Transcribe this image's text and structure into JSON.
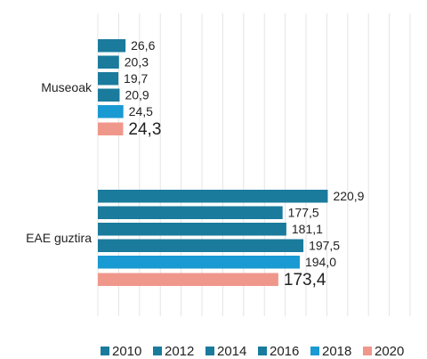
{
  "chart_data": {
    "type": "hbar",
    "categories": [
      "Museoak",
      "EAE guztira"
    ],
    "series": [
      {
        "name": "2010",
        "color": "#1a7b9c",
        "values": [
          26.6,
          220.9
        ],
        "value_labels": [
          "26,6",
          "220,9"
        ]
      },
      {
        "name": "2012",
        "color": "#1a7b9c",
        "values": [
          20.3,
          177.5
        ],
        "value_labels": [
          "20,3",
          "177,5"
        ]
      },
      {
        "name": "2014",
        "color": "#1a7b9c",
        "values": [
          19.7,
          181.1
        ],
        "value_labels": [
          "19,7",
          "181,1"
        ]
      },
      {
        "name": "2016",
        "color": "#1a7b9c",
        "values": [
          20.9,
          197.5
        ],
        "value_labels": [
          "20,9",
          "197,5"
        ]
      },
      {
        "name": "2018",
        "color": "#1a9ad2",
        "values": [
          24.5,
          194.0
        ],
        "value_labels": [
          "24,5",
          "194,0"
        ]
      },
      {
        "name": "2020",
        "color": "#f0978b",
        "values": [
          24.3,
          173.4
        ],
        "value_labels": [
          "24,3",
          "173,4"
        ]
      }
    ],
    "xlim": [
      0,
      300
    ],
    "xticks": [
      0,
      20,
      40,
      60,
      80,
      100,
      120,
      140,
      160,
      180,
      200,
      220,
      240,
      260,
      280,
      300
    ],
    "grid": true,
    "legend": "bottom"
  }
}
